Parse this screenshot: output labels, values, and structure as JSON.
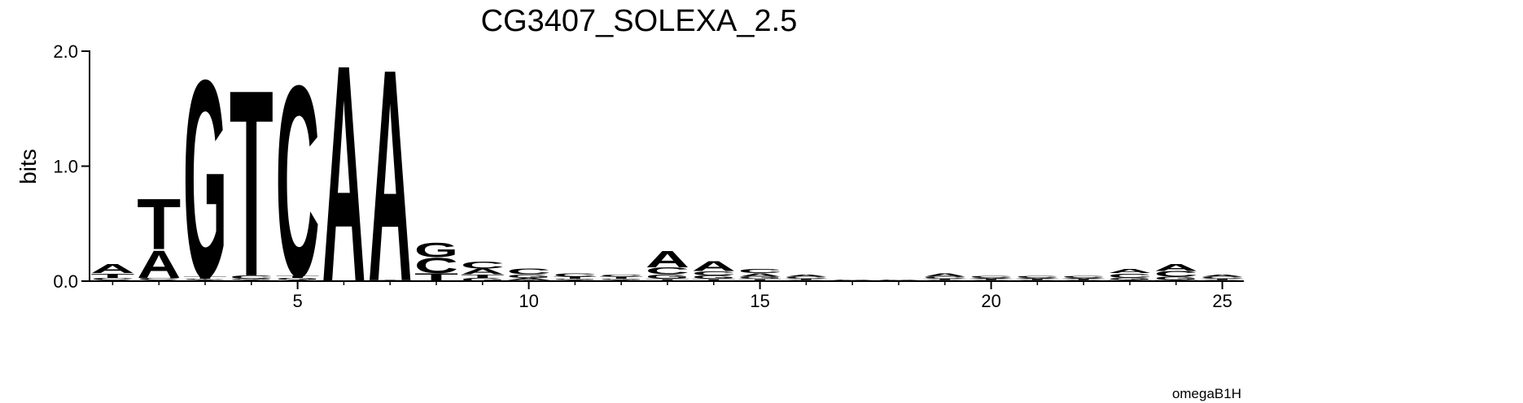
{
  "chart_data": {
    "type": "logo",
    "title": "CG3407_SOLEXA_2.5",
    "ylabel": "bits",
    "footer": "omegaB1H",
    "colors": {
      "A": "#008000",
      "C": "#0000ff",
      "G": "#ffa500",
      "T": "#ff0000"
    },
    "x": [
      1,
      2,
      3,
      4,
      5,
      6,
      7,
      8,
      9,
      10,
      11,
      12,
      13,
      14,
      15,
      16,
      17,
      18,
      19,
      20,
      21,
      22,
      23,
      24,
      25
    ],
    "stacks": [
      {
        "letters": [
          "G",
          "C",
          "T",
          "A"
        ],
        "heights": [
          0.01,
          0.02,
          0.04,
          0.08
        ]
      },
      {
        "letters": [
          "G",
          "C",
          "A",
          "T"
        ],
        "heights": [
          0.01,
          0.02,
          0.25,
          0.46
        ]
      },
      {
        "letters": [
          "A",
          "C",
          "T",
          "G"
        ],
        "heights": [
          0.01,
          0.01,
          0.02,
          1.79
        ]
      },
      {
        "letters": [
          "A",
          "G",
          "C",
          "T"
        ],
        "heights": [
          0.01,
          0.01,
          0.03,
          1.69
        ]
      },
      {
        "letters": [
          "A",
          "G",
          "T",
          "C"
        ],
        "heights": [
          0.01,
          0.02,
          0.02,
          1.73
        ]
      },
      {
        "letters": [
          "A"
        ],
        "heights": [
          1.97
        ]
      },
      {
        "letters": [
          "T",
          "A"
        ],
        "heights": [
          0.01,
          1.92
        ]
      },
      {
        "letters": [
          "T",
          "C",
          "G"
        ],
        "heights": [
          0.07,
          0.14,
          0.13
        ]
      },
      {
        "letters": [
          "G",
          "T",
          "A",
          "C"
        ],
        "heights": [
          0.03,
          0.03,
          0.05,
          0.06
        ]
      },
      {
        "letters": [
          "T",
          "A",
          "G",
          "C"
        ],
        "heights": [
          0.01,
          0.02,
          0.03,
          0.05
        ]
      },
      {
        "letters": [
          "A",
          "G",
          "T",
          "C"
        ],
        "heights": [
          0.01,
          0.01,
          0.02,
          0.03
        ]
      },
      {
        "letters": [
          "A",
          "G",
          "T",
          "C"
        ],
        "heights": [
          0.01,
          0.01,
          0.02,
          0.02
        ]
      },
      {
        "letters": [
          "T",
          "G",
          "C",
          "A"
        ],
        "heights": [
          0.02,
          0.04,
          0.06,
          0.15
        ]
      },
      {
        "letters": [
          "T",
          "G",
          "C",
          "A"
        ],
        "heights": [
          0.02,
          0.03,
          0.04,
          0.09
        ]
      },
      {
        "letters": [
          "T",
          "G",
          "A",
          "C"
        ],
        "heights": [
          0.02,
          0.02,
          0.03,
          0.04
        ]
      },
      {
        "letters": [
          "G",
          "T",
          "C",
          "A"
        ],
        "heights": [
          0.01,
          0.01,
          0.02,
          0.02
        ]
      },
      {
        "letters": [
          "G",
          "T",
          "C",
          "A"
        ],
        "heights": [
          0.003,
          0.003,
          0.004,
          0.004
        ]
      },
      {
        "letters": [
          "G",
          "T",
          "C",
          "A"
        ],
        "heights": [
          0.003,
          0.003,
          0.004,
          0.004
        ]
      },
      {
        "letters": [
          "G",
          "T",
          "C",
          "A"
        ],
        "heights": [
          0.01,
          0.01,
          0.02,
          0.03
        ]
      },
      {
        "letters": [
          "G",
          "T",
          "A",
          "C"
        ],
        "heights": [
          0.01,
          0.01,
          0.01,
          0.02
        ]
      },
      {
        "letters": [
          "G",
          "T",
          "A",
          "C"
        ],
        "heights": [
          0.01,
          0.01,
          0.01,
          0.02
        ]
      },
      {
        "letters": [
          "G",
          "T",
          "A",
          "C"
        ],
        "heights": [
          0.01,
          0.01,
          0.01,
          0.02
        ]
      },
      {
        "letters": [
          "T",
          "G",
          "C",
          "A"
        ],
        "heights": [
          0.01,
          0.02,
          0.04,
          0.04
        ]
      },
      {
        "letters": [
          "T",
          "G",
          "C",
          "A"
        ],
        "heights": [
          0.01,
          0.03,
          0.05,
          0.06
        ]
      },
      {
        "letters": [
          "G",
          "T",
          "C",
          "A"
        ],
        "heights": [
          0.01,
          0.01,
          0.02,
          0.02
        ]
      }
    ],
    "xlim": [
      0.5,
      25.5
    ],
    "ylim": [
      0,
      2
    ],
    "xticks": [
      5,
      10,
      15,
      20,
      25
    ],
    "xminorticks": [
      1,
      2,
      3,
      4,
      5,
      6,
      7,
      8,
      9,
      10,
      11,
      12,
      13,
      14,
      15,
      16,
      17,
      18,
      19,
      20,
      21,
      22,
      23,
      24,
      25
    ],
    "yticks": [
      {
        "value": 0,
        "label": "0.0"
      },
      {
        "value": 1,
        "label": "1.0"
      },
      {
        "value": 2,
        "label": "2.0"
      }
    ]
  }
}
